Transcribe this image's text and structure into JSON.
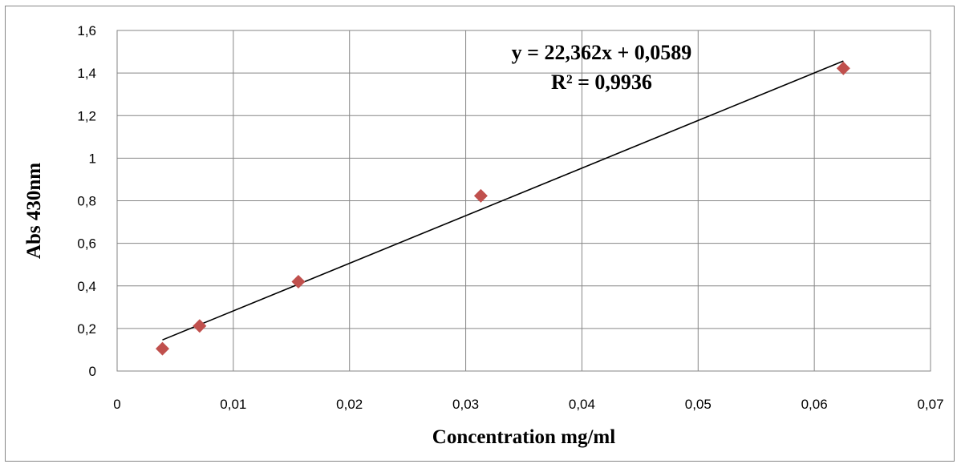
{
  "chart_data": {
    "type": "scatter",
    "xlabel": "Concentration mg/ml",
    "ylabel": "Abs 430nm",
    "xlim": [
      0,
      0.07
    ],
    "ylim": [
      0,
      1.6
    ],
    "x_ticks": [
      "0",
      "0,01",
      "0,02",
      "0,03",
      "0,04",
      "0,05",
      "0,06",
      "0,07"
    ],
    "y_ticks": [
      "0",
      "0,2",
      "0,4",
      "0,6",
      "0,8",
      "1",
      "1,2",
      "1,4",
      "1,6"
    ],
    "grid": true,
    "series": [
      {
        "x": [
          0.0039,
          0.0071,
          0.0156,
          0.0313,
          0.0625
        ],
        "y": [
          0.105,
          0.212,
          0.42,
          0.823,
          1.422
        ],
        "marker": "diamond",
        "color": "#C0504D"
      }
    ],
    "trendline": {
      "slope": 22.362,
      "intercept": 0.0589,
      "x_range": [
        0.0039,
        0.0625
      ],
      "color": "#000000"
    },
    "annotations": [
      "y = 22,362x + 0,0589",
      "R² = 0,9936"
    ]
  }
}
